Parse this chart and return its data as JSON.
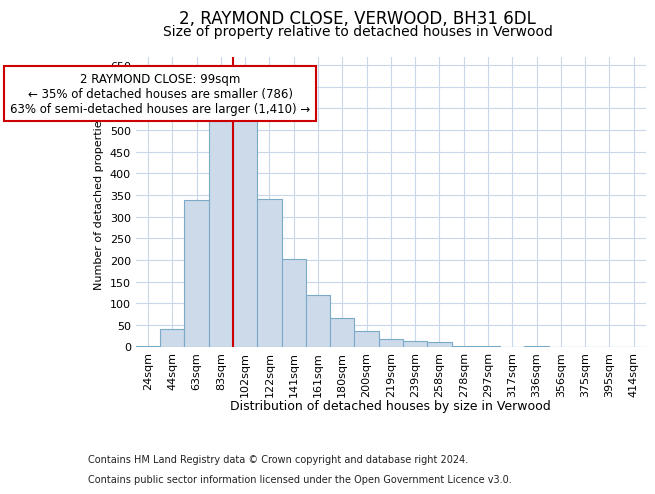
{
  "title1": "2, RAYMOND CLOSE, VERWOOD, BH31 6DL",
  "title2": "Size of property relative to detached houses in Verwood",
  "xlabel": "Distribution of detached houses by size in Verwood",
  "ylabel": "Number of detached properties",
  "footer1": "Contains HM Land Registry data © Crown copyright and database right 2024.",
  "footer2": "Contains public sector information licensed under the Open Government Licence v3.0.",
  "annotation_line1": "2 RAYMOND CLOSE: 99sqm",
  "annotation_line2": "← 35% of detached houses are smaller (786)",
  "annotation_line3": "63% of semi-detached houses are larger (1,410) →",
  "bar_color": "#ccdaea",
  "bar_edge_color": "#7aaac8",
  "grid_color": "#c8d8e8",
  "red_line_color": "#cc0000",
  "annotation_box_edge_color": "#cc0000",
  "background_color": "#ffffff",
  "categories": [
    "24sqm",
    "44sqm",
    "63sqm",
    "83sqm",
    "102sqm",
    "122sqm",
    "141sqm",
    "161sqm",
    "180sqm",
    "200sqm",
    "219sqm",
    "239sqm",
    "258sqm",
    "278sqm",
    "297sqm",
    "317sqm",
    "336sqm",
    "356sqm",
    "375sqm",
    "395sqm",
    "414sqm"
  ],
  "values": [
    2,
    40,
    338,
    520,
    535,
    340,
    202,
    118,
    65,
    35,
    17,
    12,
    10,
    2,
    2,
    0,
    2,
    0,
    0,
    0,
    0
  ],
  "red_line_index": 4,
  "ylim": [
    0,
    670
  ],
  "yticks": [
    0,
    50,
    100,
    150,
    200,
    250,
    300,
    350,
    400,
    450,
    500,
    550,
    600,
    650
  ],
  "title1_fontsize": 12,
  "title2_fontsize": 10,
  "ylabel_fontsize": 8,
  "xlabel_fontsize": 9,
  "tick_fontsize": 8,
  "footer_fontsize": 7
}
